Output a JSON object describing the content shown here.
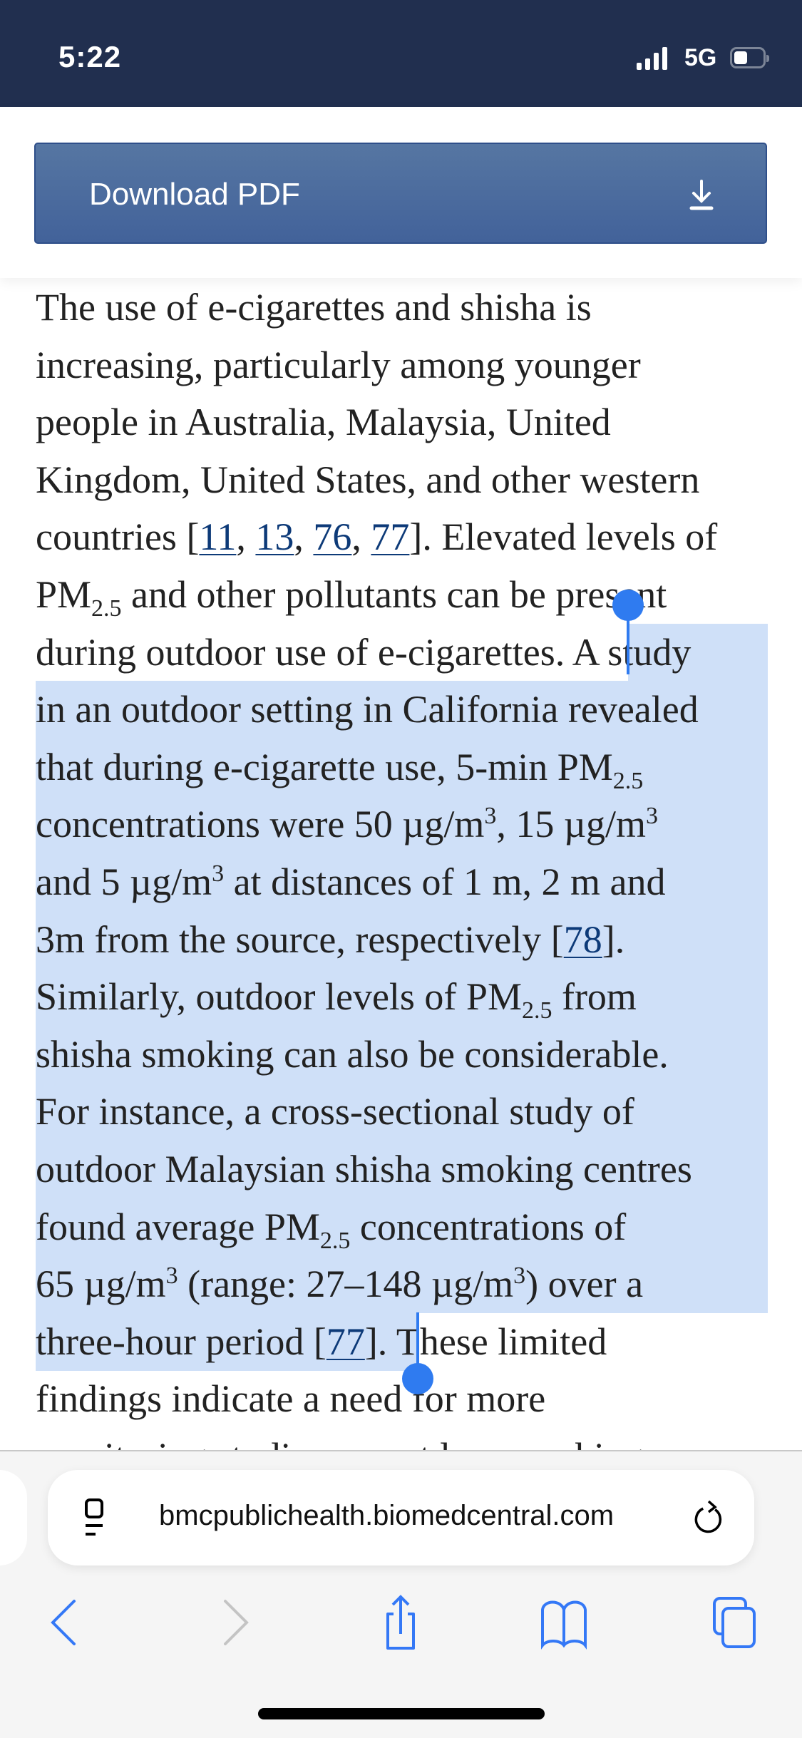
{
  "status_bar": {
    "time": "5:22",
    "network": "5G",
    "battery_level": 0.35
  },
  "header": {
    "download_label": "Download PDF",
    "download_icon": "download-arrow-icon",
    "button_color": "#4a6a9e"
  },
  "article": {
    "lines": [
      [
        {
          "t": "The use of e-cigarettes and shisha is"
        }
      ],
      [
        {
          "t": "increasing, particularly among younger"
        }
      ],
      [
        {
          "t": "people in Australia, Malaysia, United"
        }
      ],
      [
        {
          "t": "Kingdom, United States, and other western"
        }
      ],
      [
        {
          "t": "countries ["
        },
        {
          "t": "11",
          "k": "ref"
        },
        {
          "t": ", "
        },
        {
          "t": "13",
          "k": "ref"
        },
        {
          "t": ", "
        },
        {
          "t": "76",
          "k": "ref"
        },
        {
          "t": ", "
        },
        {
          "t": "77",
          "k": "ref"
        },
        {
          "t": "]. Elevated levels of"
        }
      ],
      [
        {
          "t": "PM"
        },
        {
          "t": "2.5",
          "k": "sub"
        },
        {
          "t": " and other pollutants can be present"
        }
      ],
      [
        {
          "t": "during outdoor use of e-cigarettes. A study"
        }
      ],
      [
        {
          "t": "in an outdoor setting in California revealed"
        }
      ],
      [
        {
          "t": "that during e-cigarette use, 5-min PM"
        },
        {
          "t": "2.5",
          "k": "sub"
        }
      ],
      [
        {
          "t": "concentrations were 50 µg/m"
        },
        {
          "t": "3",
          "k": "sup"
        },
        {
          "t": ", 15 µg/m"
        },
        {
          "t": "3",
          "k": "sup"
        }
      ],
      [
        {
          "t": "and 5 µg/m"
        },
        {
          "t": "3",
          "k": "sup"
        },
        {
          "t": " at distances of 1 m, 2 m and"
        }
      ],
      [
        {
          "t": "3m from the source, respectively ["
        },
        {
          "t": "78",
          "k": "ref"
        },
        {
          "t": "]."
        }
      ],
      [
        {
          "t": "Similarly, outdoor levels of PM"
        },
        {
          "t": "2.5",
          "k": "sub"
        },
        {
          "t": " from"
        }
      ],
      [
        {
          "t": "shisha smoking can also be considerable."
        }
      ],
      [
        {
          "t": "For instance, a cross-sectional study of"
        }
      ],
      [
        {
          "t": "outdoor Malaysian shisha smoking centres"
        }
      ],
      [
        {
          "t": "found average PM"
        },
        {
          "t": "2.5",
          "k": "sub"
        },
        {
          "t": " concentrations of"
        }
      ],
      [
        {
          "t": "65 µg/m"
        },
        {
          "t": "3",
          "k": "sup"
        },
        {
          "t": " (range: 27–148 µg/m"
        },
        {
          "t": "3",
          "k": "sup"
        },
        {
          "t": ") over a"
        }
      ],
      [
        {
          "t": "three-hour period ["
        },
        {
          "t": "77",
          "k": "ref"
        },
        {
          "t": "]. These limited"
        }
      ],
      [
        {
          "t": "findings indicate a need for more"
        }
      ],
      [
        {
          "t": "monitoring studies on outdoor smoking"
        }
      ]
    ],
    "selection_color": "#cfe0f8",
    "handle_color": "#2f7bf0"
  },
  "browser": {
    "url": "bmcpublichealth.biomedcentral.com",
    "reader_icon": "reader-icon",
    "reload_icon": "reload-icon",
    "nav": [
      {
        "name": "back-icon",
        "enabled": true
      },
      {
        "name": "forward-icon",
        "enabled": false
      },
      {
        "name": "share-icon",
        "enabled": true
      },
      {
        "name": "bookmarks-icon",
        "enabled": true
      },
      {
        "name": "tabs-icon",
        "enabled": true
      }
    ],
    "accent": "#3478f6"
  }
}
